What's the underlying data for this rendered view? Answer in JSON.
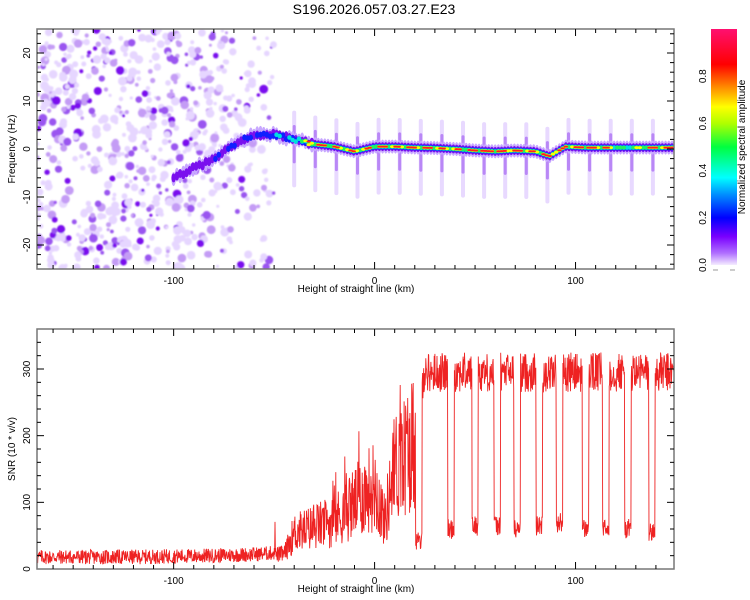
{
  "title": "S196.2026.057.03.27.E23",
  "chart_data": [
    {
      "type": "heatmap",
      "name": "spectrogram",
      "xlabel": "Height of straight line (km)",
      "ylabel": "Frequency (Hz)",
      "xlim": [
        -168,
        149
      ],
      "ylim": [
        -25,
        25
      ],
      "xticks": [
        -100,
        0,
        100
      ],
      "xtick_labels": [
        "-100",
        "0",
        "100"
      ],
      "yticks": [
        -20,
        -10,
        0,
        10,
        20
      ],
      "ytick_labels": [
        "-20",
        "-10",
        "0",
        "10",
        "20"
      ],
      "colorbar": {
        "label": "Normalized spectral amplitude",
        "range": [
          0.0,
          1.0
        ],
        "ticks": [
          0.0,
          0.2,
          0.4,
          0.6,
          0.8
        ],
        "tick_labels": [
          "0.0",
          "0.2",
          "0.4",
          "0.6",
          "0.8"
        ],
        "colormap": [
          "#ffffff",
          "#e0c8ff",
          "#8800ff",
          "#0000ff",
          "#00ffff",
          "#00ff00",
          "#ffff00",
          "#ff8000",
          "#ff0000",
          "#ff1493"
        ]
      },
      "ridge": {
        "x_km": [
          -100,
          -90,
          -80,
          -70,
          -60,
          -50,
          -40,
          -30,
          -20,
          -10,
          0,
          10,
          20,
          30,
          40,
          50,
          60,
          70,
          80,
          87,
          95,
          105,
          115,
          125,
          135,
          147
        ],
        "freq_hz": [
          -6,
          -4,
          -2,
          1,
          3,
          3,
          2,
          1,
          0.5,
          -0.5,
          0.5,
          0.5,
          0.3,
          0.2,
          0,
          -0.3,
          -0.5,
          -0.3,
          -0.5,
          -1.5,
          0.5,
          0.3,
          0.3,
          0.3,
          0.3,
          0.3
        ],
        "peak_amplitude": [
          0.2,
          0.25,
          0.3,
          0.3,
          0.35,
          0.45,
          0.5,
          0.85,
          0.8,
          0.8,
          0.8,
          0.85,
          0.85,
          0.8,
          0.8,
          0.85,
          0.9,
          0.85,
          0.8,
          0.9,
          0.85,
          0.85,
          0.8,
          0.6,
          0.8,
          0.85
        ]
      },
      "noise_region_km": [
        -168,
        -50
      ]
    },
    {
      "type": "line",
      "name": "snr",
      "xlabel": "Height of straight line (km)",
      "ylabel": "SNR (10 * v/v)",
      "xlim": [
        -168,
        149
      ],
      "ylim": [
        0,
        360
      ],
      "xticks": [
        -100,
        0,
        100
      ],
      "xtick_labels": [
        "-100",
        "0",
        "100"
      ],
      "yticks": [
        0,
        100,
        200,
        300
      ],
      "ytick_labels": [
        "0",
        "100",
        "200",
        "300"
      ],
      "color": "#ee2222",
      "envelope": {
        "x_km": [
          -168,
          -120,
          -80,
          -60,
          -45,
          -40,
          -30,
          -20,
          -10,
          0,
          5,
          10,
          15,
          20,
          25
        ],
        "snr": [
          18,
          18,
          20,
          22,
          25,
          60,
          70,
          80,
          110,
          140,
          80,
          170,
          190,
          220,
          300
        ]
      },
      "high_level": 295,
      "dropouts": [
        {
          "x_km": 22,
          "snr": 40
        },
        {
          "x_km": 38,
          "snr": 60
        },
        {
          "x_km": 50,
          "snr": 65
        },
        {
          "x_km": 61,
          "snr": 65
        },
        {
          "x_km": 71,
          "snr": 60
        },
        {
          "x_km": 82,
          "snr": 65
        },
        {
          "x_km": 92,
          "snr": 70
        },
        {
          "x_km": 105,
          "snr": 60
        },
        {
          "x_km": 115,
          "snr": 60
        },
        {
          "x_km": 126,
          "snr": 60
        },
        {
          "x_km": 138,
          "snr": 55
        }
      ]
    }
  ]
}
